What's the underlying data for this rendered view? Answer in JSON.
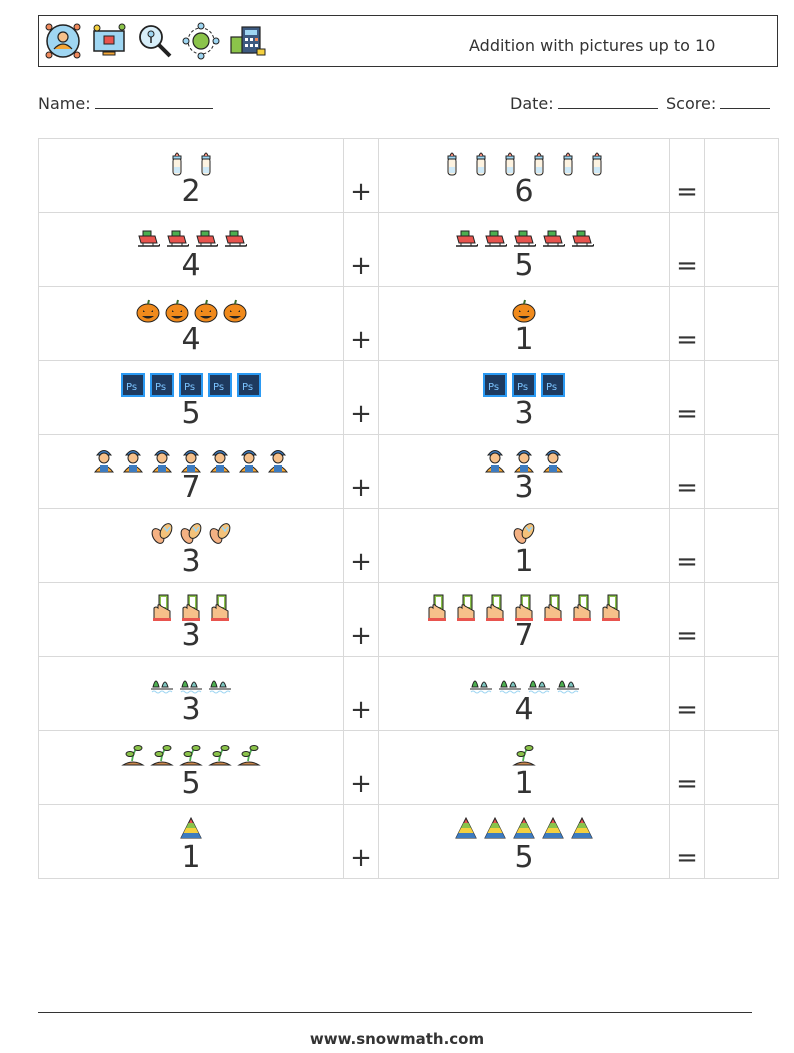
{
  "header": {
    "title": "Addition with pictures up to 10",
    "icons": [
      "user-target-icon",
      "video-monitor-icon",
      "magnifier-key-icon",
      "network-globe-icon",
      "calculator-money-icon"
    ]
  },
  "info": {
    "name_label": "Name:",
    "date_label": "Date:",
    "score_label": "Score:"
  },
  "operators": {
    "plus": "+",
    "equals": "="
  },
  "problems": [
    {
      "icon": "baby-bottle",
      "a": "2",
      "b": "6"
    },
    {
      "icon": "sleigh",
      "a": "4",
      "b": "5"
    },
    {
      "icon": "pumpkin",
      "a": "4",
      "b": "1"
    },
    {
      "icon": "photoshop",
      "a": "5",
      "b": "3"
    },
    {
      "icon": "worker",
      "a": "7",
      "b": "3"
    },
    {
      "icon": "flip-flops",
      "a": "3",
      "b": "1"
    },
    {
      "icon": "phone-hand",
      "a": "3",
      "b": "7"
    },
    {
      "icon": "plants",
      "a": "3",
      "b": "4"
    },
    {
      "icon": "sprout",
      "a": "5",
      "b": "1"
    },
    {
      "icon": "pyramid",
      "a": "1",
      "b": "5"
    }
  ],
  "footer": {
    "url": "www.snowmath.com"
  }
}
